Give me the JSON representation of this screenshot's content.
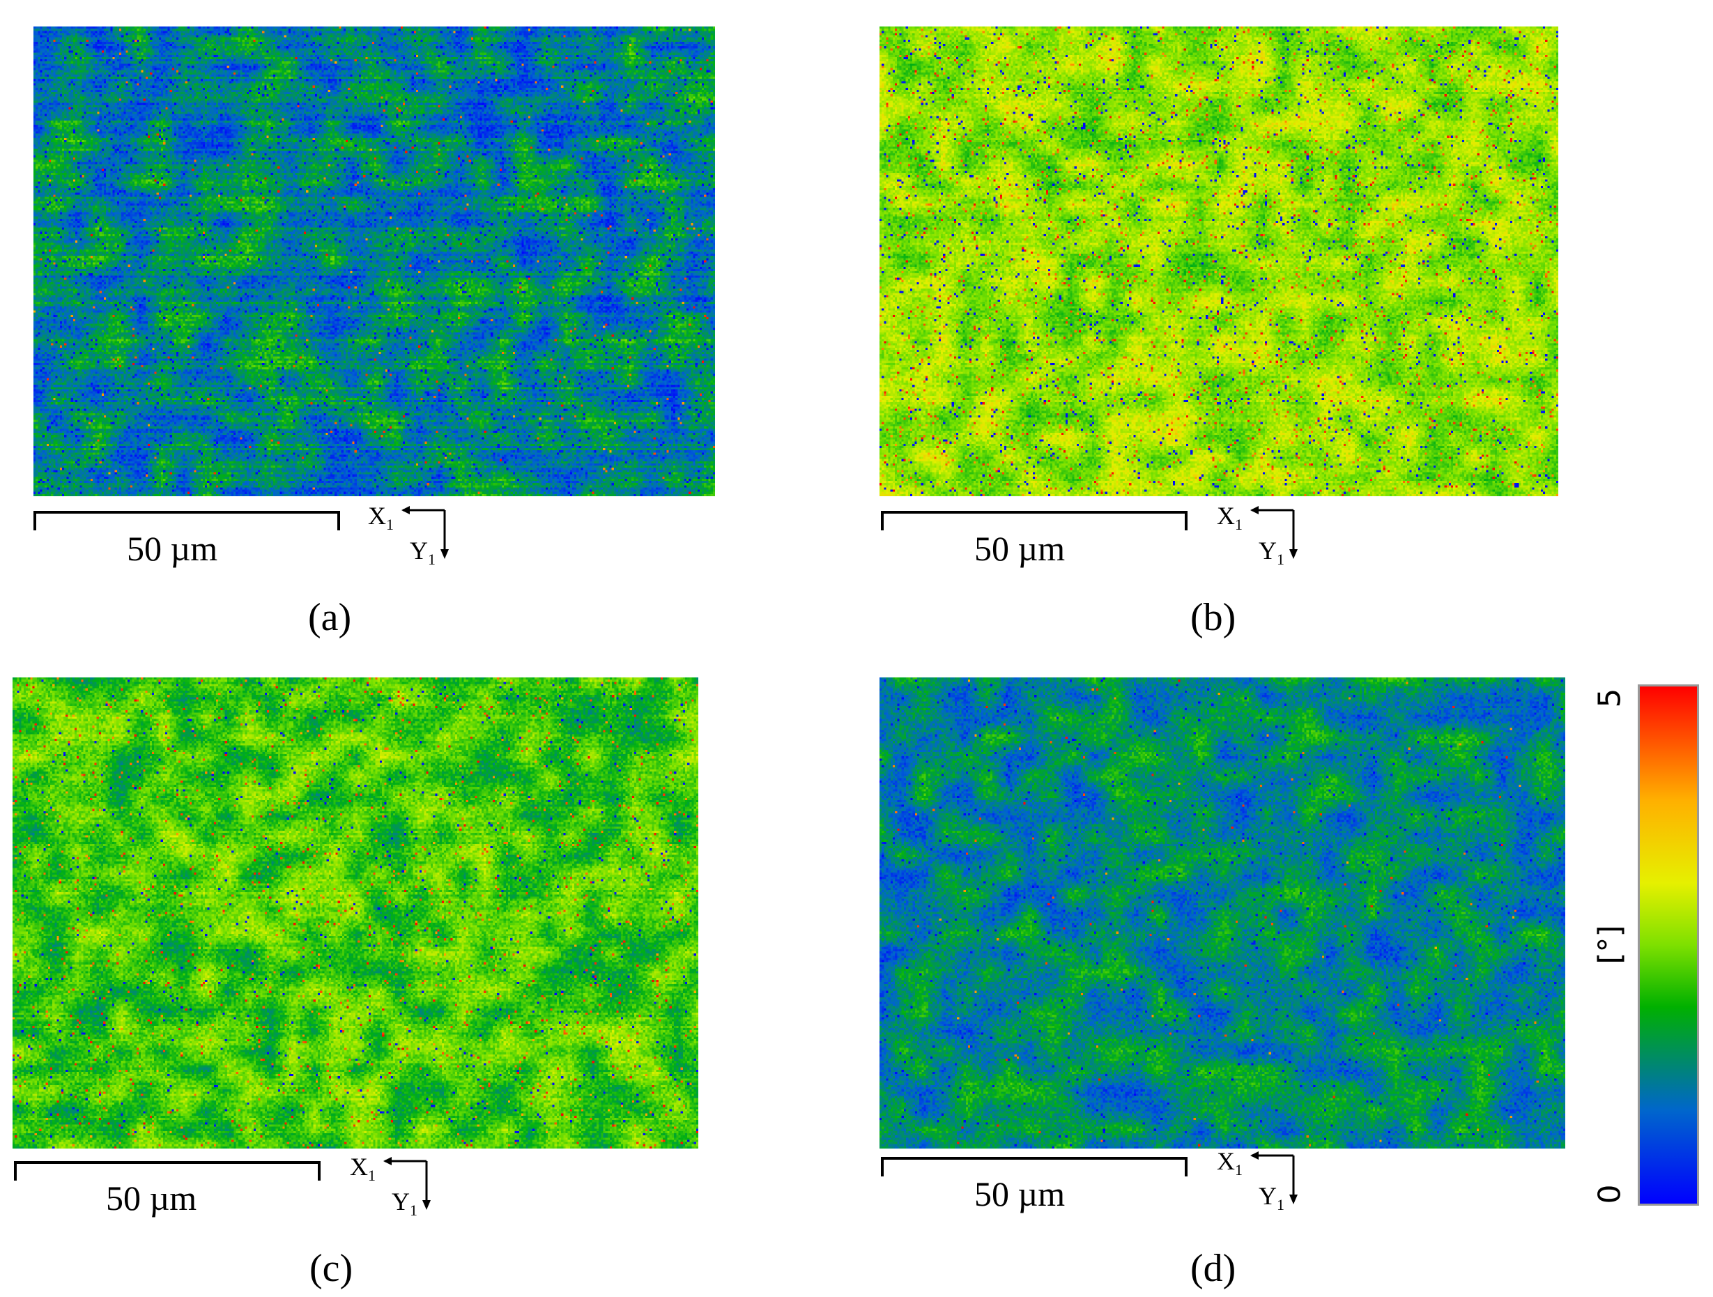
{
  "panels": [
    {
      "id": "a",
      "caption": "(a)",
      "scale_label": "50 µm",
      "axis_x_label": "X",
      "axis_x_sub": "1",
      "axis_y_label": "Y",
      "axis_y_sub": "1",
      "map_palette": "dark-blue-green"
    },
    {
      "id": "b",
      "caption": "(b)",
      "scale_label": "50 µm",
      "axis_x_label": "X",
      "axis_x_sub": "1",
      "axis_y_label": "Y",
      "axis_y_sub": "1",
      "map_palette": "bright-yellow-green"
    },
    {
      "id": "c",
      "caption": "(c)",
      "scale_label": "50 µm",
      "axis_x_label": "X",
      "axis_x_sub": "1",
      "axis_y_label": "Y",
      "axis_y_sub": "1",
      "map_palette": "green-yellow"
    },
    {
      "id": "d",
      "caption": "(d)",
      "scale_label": "50 µm",
      "axis_x_label": "X",
      "axis_x_sub": "1",
      "axis_y_label": "Y",
      "axis_y_sub": "1",
      "map_palette": "blue-green"
    }
  ],
  "colorbar": {
    "min_label": "0",
    "max_label": "5",
    "unit_label": "[°]",
    "colors": [
      "#0000ff",
      "#00b000",
      "#e6f000",
      "#ff0000"
    ]
  }
}
